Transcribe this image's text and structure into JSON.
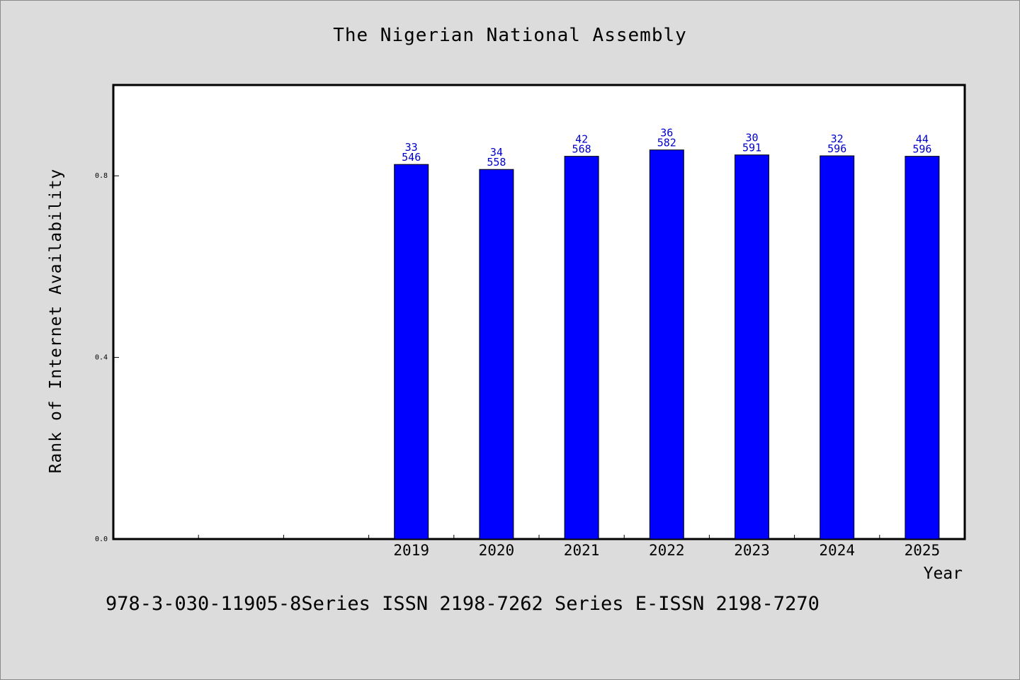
{
  "chart_data": {
    "type": "bar",
    "title": "The Nigerian National Assembly",
    "xlabel": "Year",
    "ylabel": "Rank of Internet Availability",
    "ylim": [
      0.0,
      1.0
    ],
    "y_ticks": [
      "0.0",
      "0.4",
      "0.8"
    ],
    "categories": [
      "2019",
      "2020",
      "2021",
      "2022",
      "2023",
      "2024",
      "2025"
    ],
    "values": [
      0.825,
      0.814,
      0.843,
      0.857,
      0.846,
      0.844,
      0.843
    ],
    "bar_labels": [
      [
        "33",
        "546"
      ],
      [
        "34",
        "558"
      ],
      [
        "42",
        "568"
      ],
      [
        "36",
        "582"
      ],
      [
        "30",
        "591"
      ],
      [
        "32",
        "596"
      ],
      [
        "44",
        "596"
      ]
    ],
    "grid": false,
    "colors": {
      "bar": "#0000ff",
      "label": "#0000cc"
    }
  },
  "footer": "978-3-030-11905-8Series ISSN 2198-7262 Series E-ISSN 2198-7270"
}
